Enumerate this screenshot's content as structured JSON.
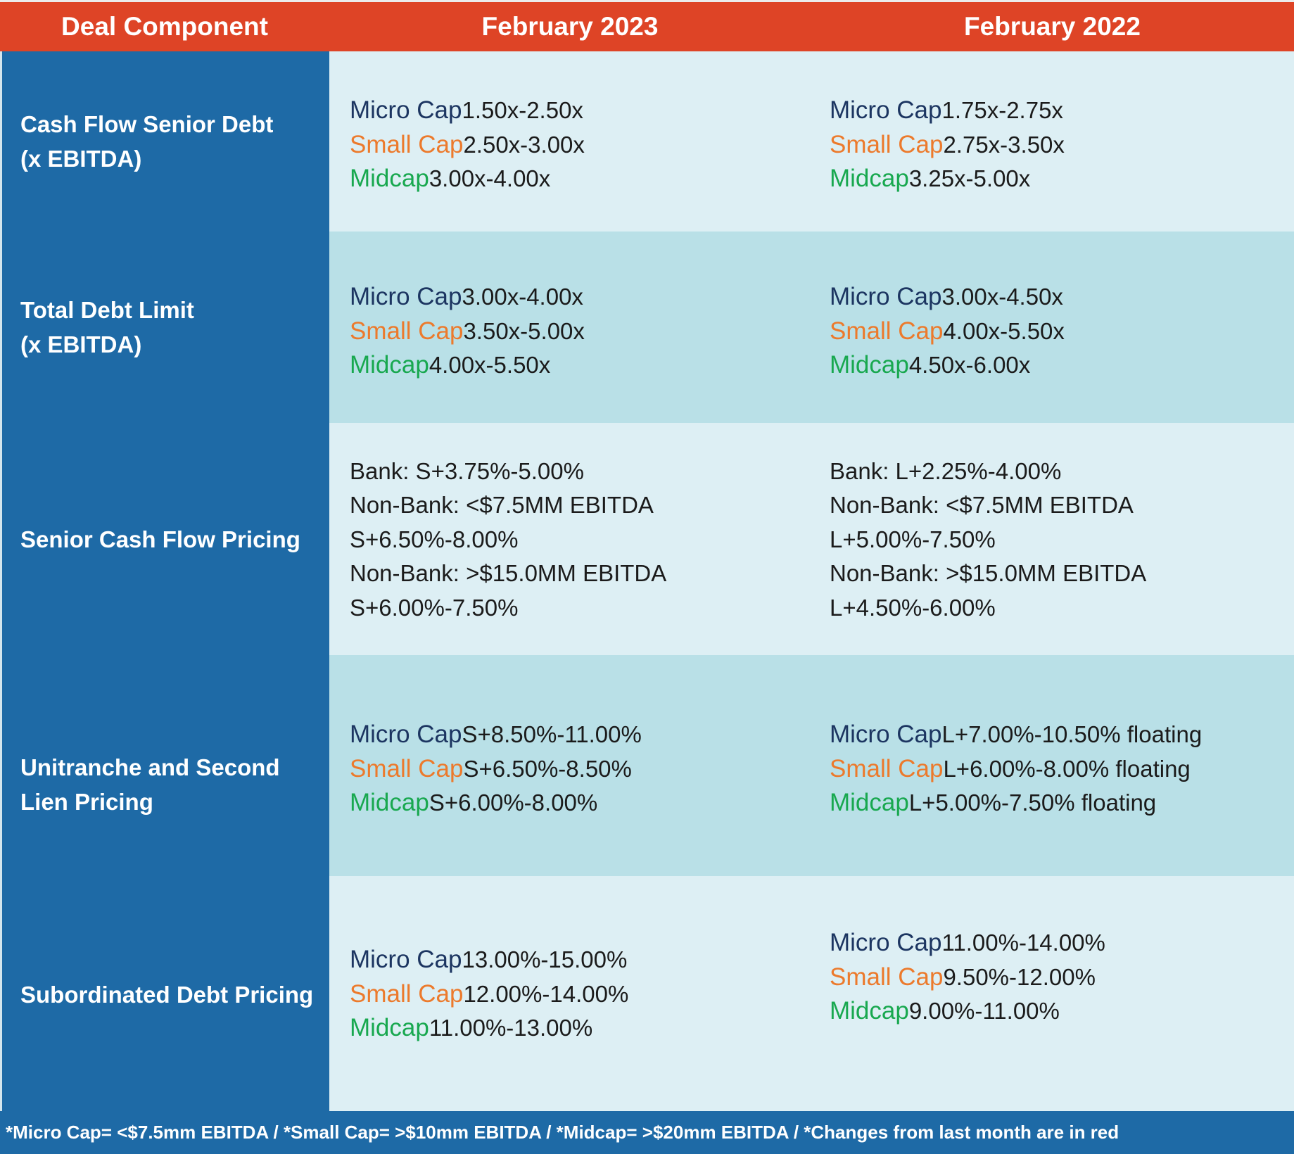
{
  "header": {
    "col0": "Deal Component",
    "col1": "February 2023",
    "col2": "February 2022"
  },
  "categories": {
    "micro": "Micro Cap",
    "small": "Small Cap",
    "mid": "Midcap"
  },
  "colors": {
    "header_bg": "#de4426",
    "label_col_bg": "#1e6aa6",
    "band_light": "#ddeff4",
    "band_dark": "#b9e0e7",
    "micro": "#1c3561",
    "small": "#ec7a2c",
    "mid": "#18a84f"
  },
  "rows": [
    {
      "label_line1": "Cash Flow Senior Debt",
      "label_line2": "(x EBITDA)",
      "feb2023": {
        "micro": "1.50x-2.50x",
        "small": "2.50x-3.00x",
        "mid": "3.00x-4.00x"
      },
      "feb2022": {
        "micro": "1.75x-2.75x",
        "small": "2.75x-3.50x",
        "mid": "3.25x-5.00x"
      }
    },
    {
      "label_line1": "Total Debt Limit",
      "label_line2": "(x EBITDA)",
      "feb2023": {
        "micro": "3.00x-4.00x",
        "small": "3.50x-5.00x",
        "mid": "4.00x-5.50x"
      },
      "feb2022": {
        "micro": "3.00x-4.50x",
        "small": "4.00x-5.50x",
        "mid": "4.50x-6.00x"
      }
    },
    {
      "label_line1": "Senior Cash Flow Pricing",
      "feb2023": {
        "bank": "Bank: S+3.75%-5.00%",
        "nonbank_small": "Non-Bank: <$7.5MM EBITDA S+6.50%-8.00%",
        "nonbank_large": "Non-Bank: >$15.0MM EBITDA S+6.00%-7.50%"
      },
      "feb2022": {
        "bank": "Bank: L+2.25%-4.00%",
        "nonbank_small": "Non-Bank: <$7.5MM EBITDA L+5.00%-7.50%",
        "nonbank_large": "Non-Bank: >$15.0MM EBITDA L+4.50%-6.00%"
      }
    },
    {
      "label_line1": "Unitranche and Second",
      "label_line2": "Lien Pricing",
      "feb2023": {
        "micro": "S+8.50%-11.00%",
        "small": "S+6.50%-8.50%",
        "mid": "S+6.00%-8.00%"
      },
      "feb2022": {
        "micro": "L+7.00%-10.50% floating",
        "small": "L+6.00%-8.00% floating",
        "mid": "L+5.00%-7.50% floating"
      }
    },
    {
      "label_line1": "Subordinated Debt Pricing",
      "feb2023": {
        "micro": "13.00%-15.00%",
        "small": "12.00%-14.00%",
        "mid": "11.00%-13.00%"
      },
      "feb2022": {
        "micro": "11.00%-14.00%",
        "small": "9.50%-12.00%",
        "mid": "9.00%-11.00%"
      }
    }
  ],
  "footer": "*Micro Cap= <$7.5mm EBITDA / *Small Cap= >$10mm EBITDA / *Midcap= >$20mm EBITDA / *Changes from last month are in red"
}
